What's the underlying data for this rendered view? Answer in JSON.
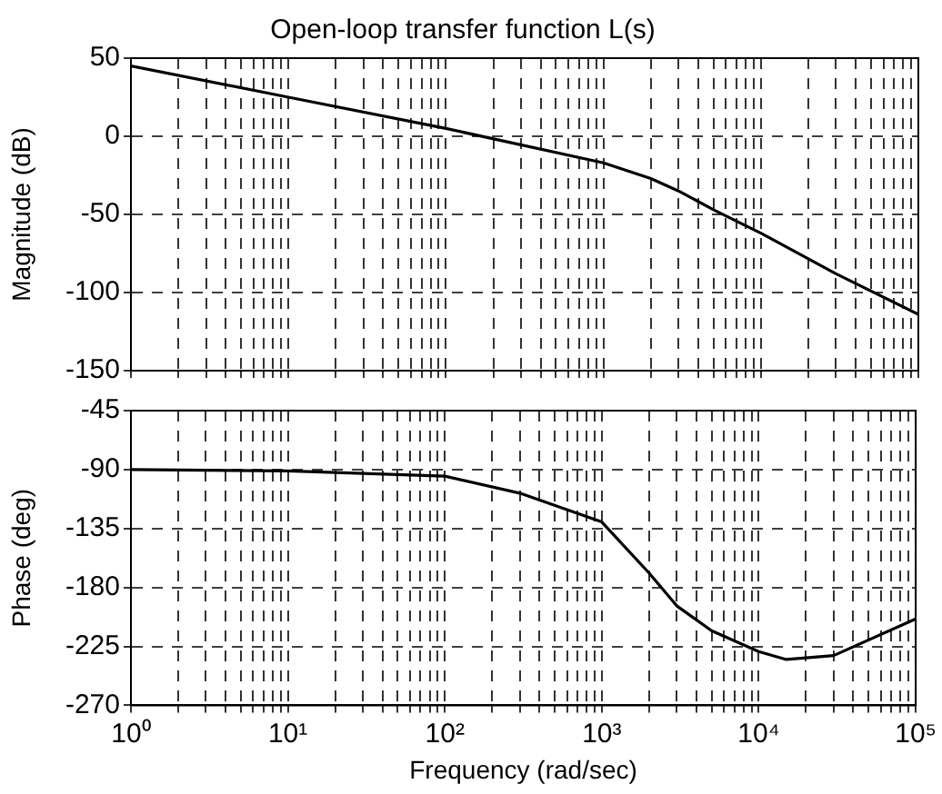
{
  "chart_data": [
    {
      "type": "line",
      "title": "Open-loop transfer function L(s)",
      "ylabel": "Magnitude (dB)",
      "log": "x",
      "grid": true,
      "marker": "none",
      "line_style": "solid",
      "legend": false,
      "tick_labels": "y",
      "x": [
        1,
        10,
        100,
        1000,
        2000,
        3000,
        5000,
        10000,
        30000,
        100000
      ],
      "series": [
        {
          "color": "#000000",
          "values": [
            45,
            25,
            5,
            -17,
            -27,
            -35,
            -47,
            -62,
            -88,
            -114
          ]
        }
      ],
      "xlim": [
        1,
        100000
      ],
      "ylim": [
        -150,
        50
      ],
      "yticks": [
        -150,
        -100,
        -50,
        0,
        50
      ],
      "xticks": [
        {
          "value": 1,
          "label": null
        },
        {
          "value": 2,
          "label": null
        },
        {
          "value": 3,
          "label": null
        },
        {
          "value": 4,
          "label": null
        },
        {
          "value": 5,
          "label": null
        },
        {
          "value": 6,
          "label": null
        },
        {
          "value": 7,
          "label": null
        },
        {
          "value": 8,
          "label": null
        },
        {
          "value": 9,
          "label": null
        },
        {
          "value": 10,
          "label": null
        },
        {
          "value": 20,
          "label": null
        },
        {
          "value": 30,
          "label": null
        },
        {
          "value": 40,
          "label": null
        },
        {
          "value": 50,
          "label": null
        },
        {
          "value": 60,
          "label": null
        },
        {
          "value": 70,
          "label": null
        },
        {
          "value": 80,
          "label": null
        },
        {
          "value": 90,
          "label": null
        },
        {
          "value": 100,
          "label": null
        },
        {
          "value": 200,
          "label": null
        },
        {
          "value": 300,
          "label": null
        },
        {
          "value": 400,
          "label": null
        },
        {
          "value": 500,
          "label": null
        },
        {
          "value": 600,
          "label": null
        },
        {
          "value": 700,
          "label": null
        },
        {
          "value": 800,
          "label": null
        },
        {
          "value": 900,
          "label": null
        },
        {
          "value": 1000,
          "label": null
        },
        {
          "value": 2000,
          "label": null
        },
        {
          "value": 3000,
          "label": null
        },
        {
          "value": 4000,
          "label": null
        },
        {
          "value": 5000,
          "label": null
        },
        {
          "value": 6000,
          "label": null
        },
        {
          "value": 7000,
          "label": null
        },
        {
          "value": 8000,
          "label": null
        },
        {
          "value": 9000,
          "label": null
        },
        {
          "value": 10000,
          "label": null
        },
        {
          "value": 20000,
          "label": null
        },
        {
          "value": 30000,
          "label": null
        },
        {
          "value": 40000,
          "label": null
        },
        {
          "value": 50000,
          "label": null
        },
        {
          "value": 60000,
          "label": null
        },
        {
          "value": 70000,
          "label": null
        },
        {
          "value": 80000,
          "label": null
        },
        {
          "value": 90000,
          "label": null
        },
        {
          "value": 100000,
          "label": null
        }
      ]
    },
    {
      "type": "line",
      "xlabel": "Frequency (rad/sec)",
      "ylabel": "Phase (deg)",
      "log": "x",
      "grid": true,
      "marker": "none",
      "line_style": "solid",
      "legend": false,
      "x": [
        1,
        10,
        100,
        300,
        1000,
        2000,
        3000,
        5000,
        10000,
        15000,
        30000,
        100000
      ],
      "series": [
        {
          "color": "#000000",
          "values": [
            -90,
            -91,
            -95,
            -108,
            -130,
            -169,
            -194,
            -213,
            -229,
            -235,
            -232,
            -204
          ]
        }
      ],
      "xlim": [
        1,
        100000
      ],
      "ylim": [
        -270,
        -45
      ],
      "yticks": [
        -270,
        -225,
        -180,
        -135,
        -90,
        -45
      ],
      "xticks": [
        {
          "value": 1,
          "label": "10⁰"
        },
        {
          "value": 2,
          "label": null
        },
        {
          "value": 3,
          "label": null
        },
        {
          "value": 4,
          "label": null
        },
        {
          "value": 5,
          "label": null
        },
        {
          "value": 6,
          "label": null
        },
        {
          "value": 7,
          "label": null
        },
        {
          "value": 8,
          "label": null
        },
        {
          "value": 9,
          "label": null
        },
        {
          "value": 10,
          "label": "10¹"
        },
        {
          "value": 20,
          "label": null
        },
        {
          "value": 30,
          "label": null
        },
        {
          "value": 40,
          "label": null
        },
        {
          "value": 50,
          "label": null
        },
        {
          "value": 60,
          "label": null
        },
        {
          "value": 70,
          "label": null
        },
        {
          "value": 80,
          "label": null
        },
        {
          "value": 90,
          "label": null
        },
        {
          "value": 100,
          "label": "10²"
        },
        {
          "value": 200,
          "label": null
        },
        {
          "value": 300,
          "label": null
        },
        {
          "value": 400,
          "label": null
        },
        {
          "value": 500,
          "label": null
        },
        {
          "value": 600,
          "label": null
        },
        {
          "value": 700,
          "label": null
        },
        {
          "value": 800,
          "label": null
        },
        {
          "value": 900,
          "label": null
        },
        {
          "value": 1000,
          "label": "10³"
        },
        {
          "value": 2000,
          "label": null
        },
        {
          "value": 3000,
          "label": null
        },
        {
          "value": 4000,
          "label": null
        },
        {
          "value": 5000,
          "label": null
        },
        {
          "value": 6000,
          "label": null
        },
        {
          "value": 7000,
          "label": null
        },
        {
          "value": 8000,
          "label": null
        },
        {
          "value": 9000,
          "label": null
        },
        {
          "value": 10000,
          "label": "10⁴"
        },
        {
          "value": 20000,
          "label": null
        },
        {
          "value": 30000,
          "label": null
        },
        {
          "value": 40000,
          "label": null
        },
        {
          "value": 50000,
          "label": null
        },
        {
          "value": 60000,
          "label": null
        },
        {
          "value": 70000,
          "label": null
        },
        {
          "value": 80000,
          "label": null
        },
        {
          "value": 90000,
          "label": null
        },
        {
          "value": 100000,
          "label": "10⁵"
        }
      ]
    }
  ]
}
